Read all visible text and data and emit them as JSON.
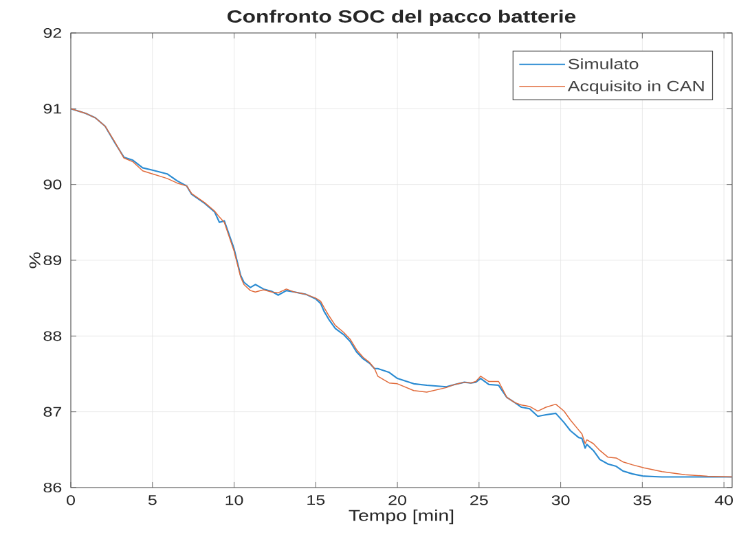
{
  "chart_data": {
    "type": "line",
    "title": "Confronto SOC del pacco batterie",
    "xlabel": "Tempo [min]",
    "ylabel": "%",
    "x": [
      0,
      0.9,
      1.5,
      2.1,
      2.7,
      3.25,
      3.8,
      4.4,
      5.0,
      5.9,
      6.5,
      7.1,
      7.4,
      8.2,
      8.8,
      9.1,
      9.4,
      10.0,
      10.4,
      10.6,
      11.0,
      11.3,
      11.8,
      12.3,
      12.7,
      13.2,
      13.7,
      14.4,
      15.0,
      15.3,
      15.5,
      15.8,
      16.2,
      16.7,
      17.1,
      17.5,
      17.9,
      18.3,
      18.6,
      18.8,
      19.5,
      20.0,
      21.0,
      21.8,
      23.0,
      23.5,
      24.1,
      24.5,
      24.8,
      25.1,
      25.6,
      26.2,
      26.7,
      27.2,
      27.6,
      28.1,
      28.6,
      29.1,
      29.7,
      30.2,
      30.6,
      31.1,
      31.3,
      31.5,
      31.6,
      32.0,
      32.4,
      32.9,
      33.4,
      33.8,
      34.4,
      35.1,
      36.2,
      37.6,
      39.0,
      40.5
    ],
    "series": [
      {
        "name": "Simulato",
        "color": "#2a8bd2",
        "values": [
          91.0,
          90.94,
          90.88,
          90.77,
          90.55,
          90.36,
          90.32,
          90.22,
          90.19,
          90.14,
          90.05,
          89.98,
          89.87,
          89.75,
          89.64,
          89.5,
          89.52,
          89.15,
          88.8,
          88.71,
          88.64,
          88.68,
          88.62,
          88.59,
          88.54,
          88.6,
          88.58,
          88.55,
          88.49,
          88.43,
          88.33,
          88.22,
          88.1,
          88.02,
          87.93,
          87.79,
          87.7,
          87.64,
          87.57,
          87.57,
          87.52,
          87.44,
          87.37,
          87.35,
          87.33,
          87.36,
          87.39,
          87.38,
          87.39,
          87.44,
          87.36,
          87.35,
          87.19,
          87.12,
          87.06,
          87.04,
          86.94,
          86.96,
          86.98,
          86.86,
          86.75,
          86.66,
          86.65,
          86.52,
          86.57,
          86.49,
          86.37,
          86.31,
          86.28,
          86.22,
          86.18,
          86.15,
          86.14,
          86.14,
          86.14,
          86.14
        ]
      },
      {
        "name": "Acquisito in CAN",
        "color": "#e06a3a",
        "values": [
          91.0,
          90.94,
          90.88,
          90.77,
          90.56,
          90.35,
          90.3,
          90.18,
          90.14,
          90.08,
          90.02,
          89.98,
          89.88,
          89.76,
          89.65,
          89.57,
          89.5,
          89.12,
          88.78,
          88.68,
          88.6,
          88.58,
          88.61,
          88.58,
          88.57,
          88.62,
          88.58,
          88.55,
          88.5,
          88.46,
          88.38,
          88.27,
          88.14,
          88.05,
          87.96,
          87.82,
          87.72,
          87.65,
          87.57,
          87.47,
          87.38,
          87.37,
          87.28,
          87.26,
          87.32,
          87.36,
          87.39,
          87.38,
          87.4,
          87.47,
          87.4,
          87.4,
          87.19,
          87.12,
          87.09,
          87.07,
          87.01,
          87.06,
          87.1,
          87.01,
          86.89,
          86.76,
          86.71,
          86.58,
          86.63,
          86.58,
          86.49,
          86.4,
          86.39,
          86.34,
          86.3,
          86.26,
          86.21,
          86.17,
          86.15,
          86.14
        ]
      }
    ],
    "xlim": [
      0,
      40.5
    ],
    "ylim": [
      86,
      92
    ],
    "xticks": [
      0,
      5,
      10,
      15,
      20,
      25,
      30,
      35,
      40
    ],
    "yticks": [
      86,
      87,
      88,
      89,
      90,
      91,
      92
    ],
    "grid": true,
    "legend": "top right",
    "line_style": "solid"
  }
}
